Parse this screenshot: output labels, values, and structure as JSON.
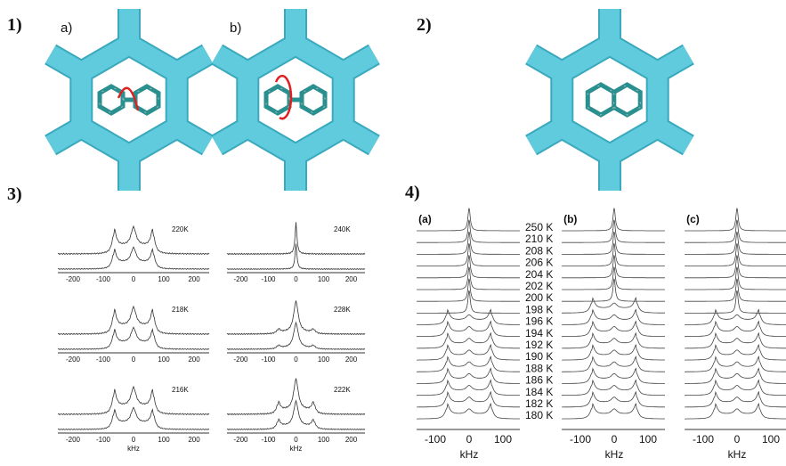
{
  "panel1": {
    "label": "1)",
    "sub_a": "a)",
    "sub_b": "b)"
  },
  "panel2": {
    "label": "2)"
  },
  "panel3": {
    "label": "3)",
    "spectra": [
      {
        "temp": "220K"
      },
      {
        "temp": "240K"
      },
      {
        "temp": "218K"
      },
      {
        "temp": "228K"
      },
      {
        "temp": "216K"
      },
      {
        "temp": "222K"
      }
    ],
    "ticks": [
      "-200",
      "-100",
      "0",
      "100",
      "200"
    ],
    "axis_label": "kHz"
  },
  "panel4": {
    "label": "4)",
    "subpanels": [
      "(a)",
      "(b)",
      "(c)"
    ],
    "temps": [
      "250 K",
      "210 K",
      "208 K",
      "206 K",
      "204 K",
      "202 K",
      "200 K",
      "198 K",
      "196 K",
      "194 K",
      "192 K",
      "190 K",
      "188 K",
      "186 K",
      "184 K",
      "182 K",
      "180 K"
    ],
    "ticks": [
      "-100",
      "0",
      "100"
    ],
    "axis_label": "kHz"
  }
}
